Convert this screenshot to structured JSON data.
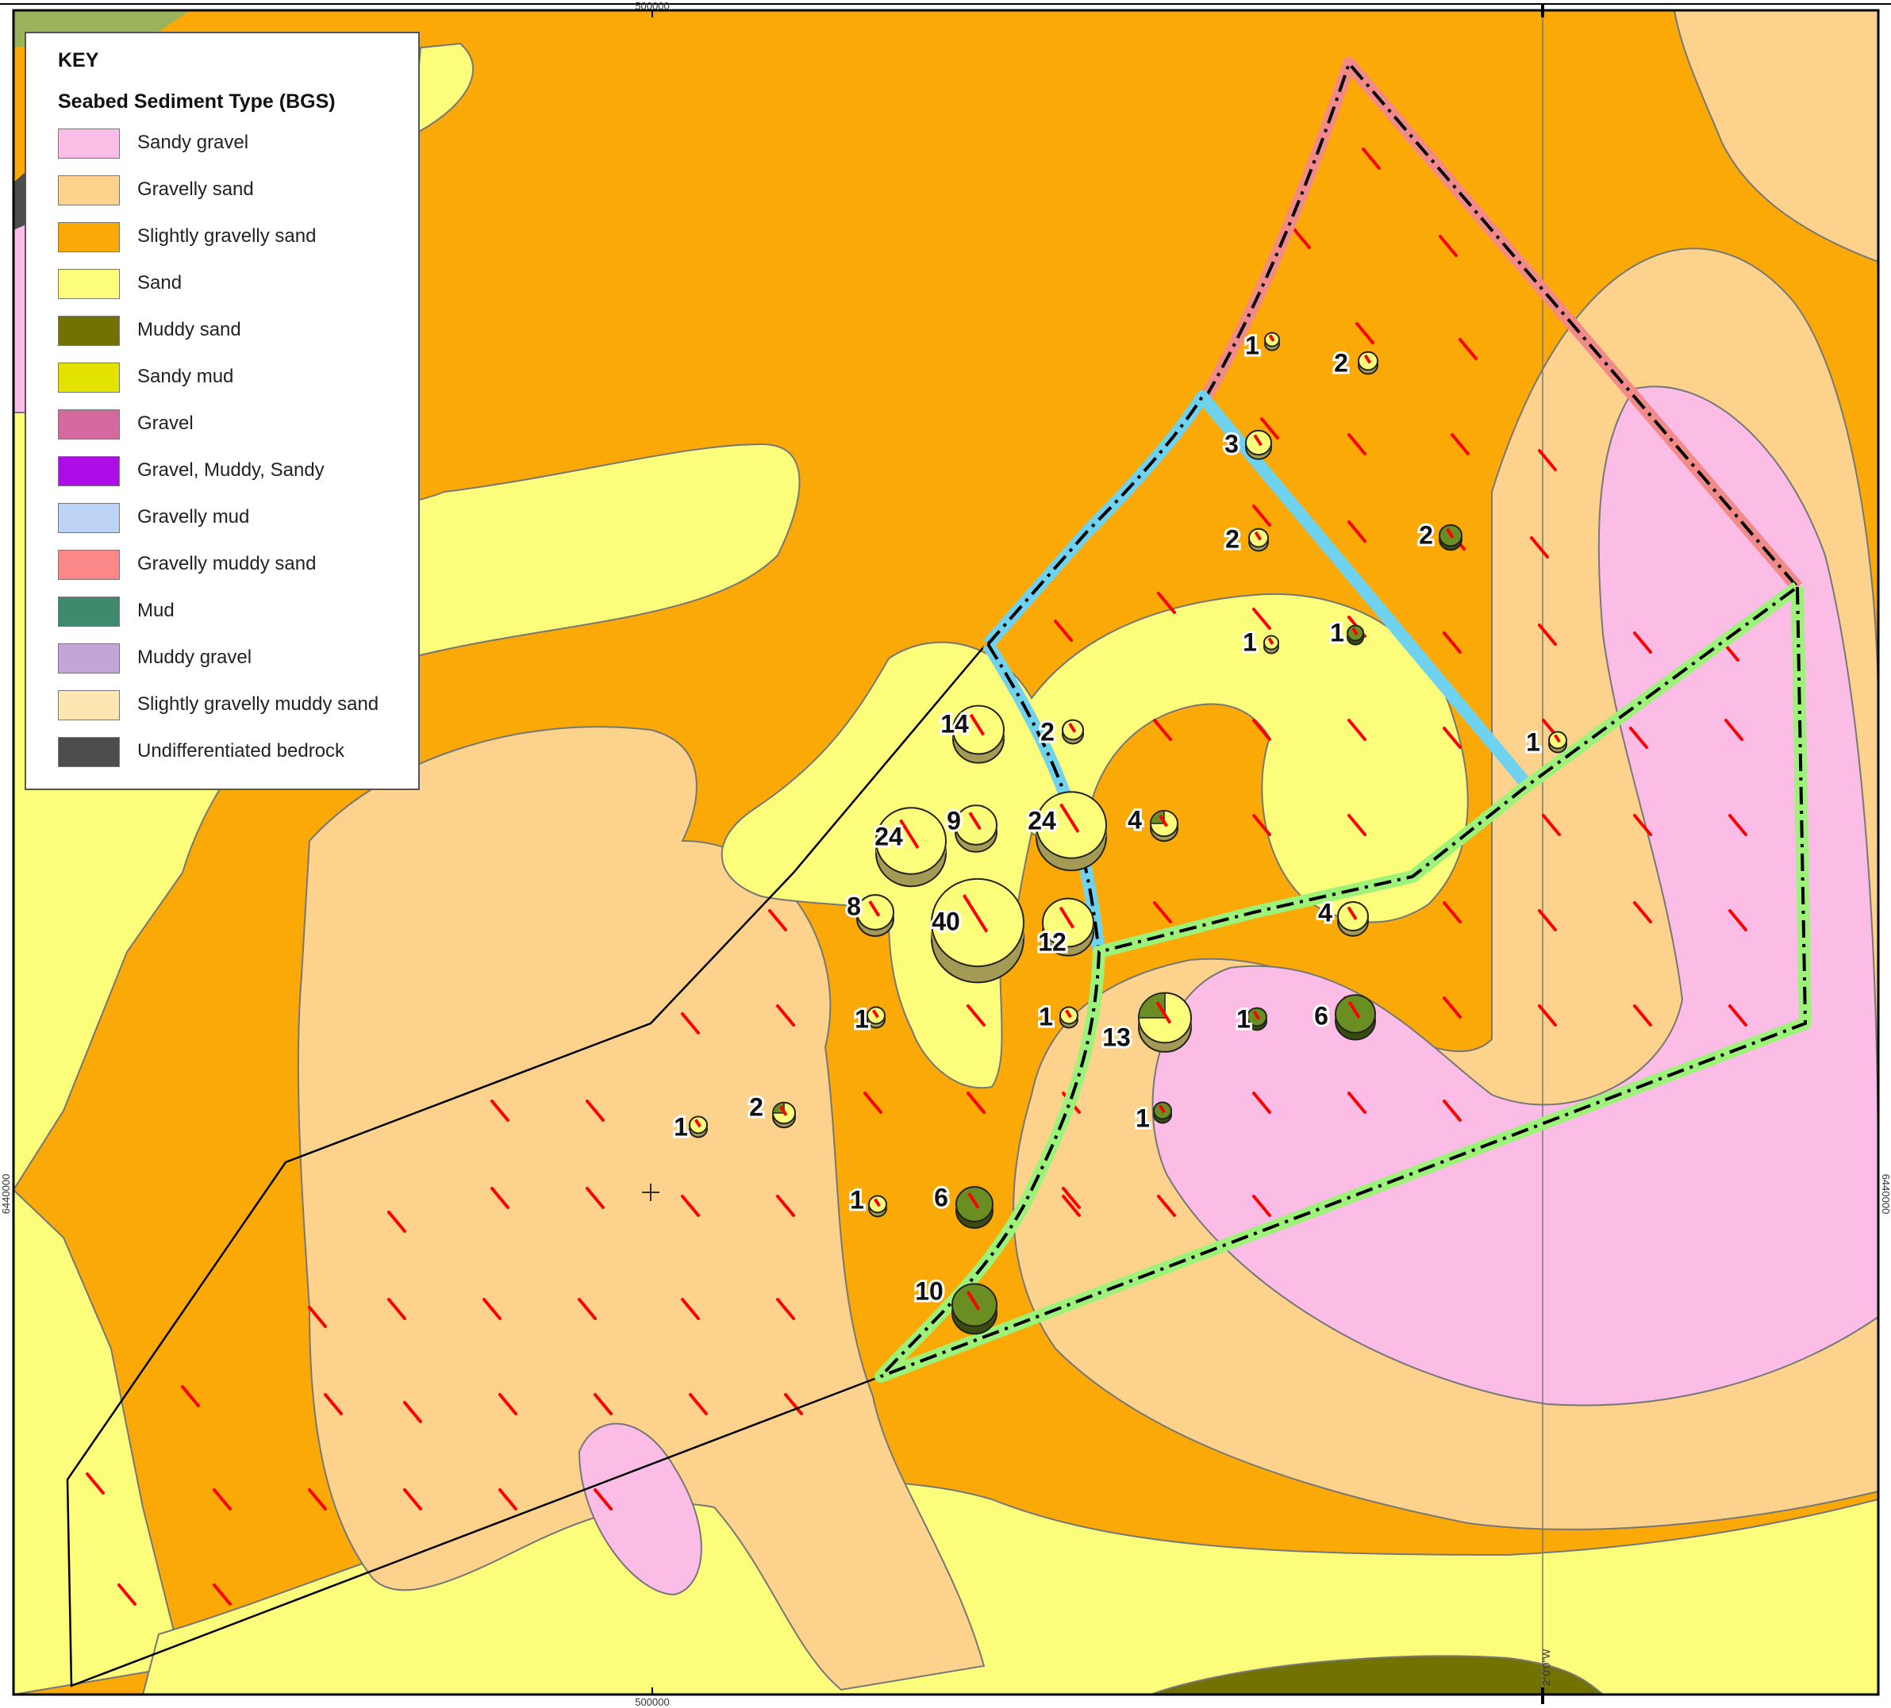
{
  "legend": {
    "title": "KEY",
    "subtitle": "Seabed Sediment Type (BGS)",
    "items": [
      {
        "label": "Sandy gravel",
        "color": "#fbbce6"
      },
      {
        "label": "Gravelly sand",
        "color": "#fcd28c"
      },
      {
        "label": "Slightly gravelly sand",
        "color": "#fba906"
      },
      {
        "label": "Sand",
        "color": "#fcfd7a"
      },
      {
        "label": "Muddy sand",
        "color": "#727200"
      },
      {
        "label": "Sandy mud",
        "color": "#e4e300"
      },
      {
        "label": "Gravel",
        "color": "#d4699f"
      },
      {
        "label": "Gravel, Muddy, Sandy",
        "color": "#ad0ce6"
      },
      {
        "label": "Gravelly mud",
        "color": "#bcd3f6"
      },
      {
        "label": "Gravelly muddy sand",
        "color": "#fa8888"
      },
      {
        "label": "Mud",
        "color": "#3f8a6a"
      },
      {
        "label": "Muddy gravel",
        "color": "#c4a4d9"
      },
      {
        "label": "Slightly gravelly muddy sand",
        "color": "#fce6b2"
      },
      {
        "label": "Undifferentiated bedrock",
        "color": "#4d4d4d"
      }
    ]
  },
  "grid_labels": {
    "easting_top": "500000",
    "easting_bottom": "500000",
    "northing_left": "6440000",
    "northing_right": "6440000",
    "meridian": "2°0'0\"W"
  },
  "sample_counts": [
    {
      "label": "1"
    },
    {
      "label": "2"
    },
    {
      "label": "3"
    },
    {
      "label": "2"
    },
    {
      "label": "2"
    },
    {
      "label": "1"
    },
    {
      "label": "1"
    },
    {
      "label": "14"
    },
    {
      "label": "2"
    },
    {
      "label": "1"
    },
    {
      "label": "9"
    },
    {
      "label": "24"
    },
    {
      "label": "24"
    },
    {
      "label": "4"
    },
    {
      "label": "8"
    },
    {
      "label": "40"
    },
    {
      "label": "12"
    },
    {
      "label": "4"
    },
    {
      "label": "1"
    },
    {
      "label": "1"
    },
    {
      "label": "13"
    },
    {
      "label": "1"
    },
    {
      "label": "6"
    },
    {
      "label": "2"
    },
    {
      "label": "1"
    },
    {
      "label": "1"
    },
    {
      "label": "1"
    },
    {
      "label": "6"
    },
    {
      "label": "10"
    }
  ],
  "colors": {
    "frame": "#000000",
    "site_pink": "#f38a8a",
    "site_blue": "#6fd3f0",
    "site_green": "#9df27a",
    "transect": "#ff0000",
    "pie_light": "#fcfd7a",
    "pie_dark": "#6b8e23"
  }
}
